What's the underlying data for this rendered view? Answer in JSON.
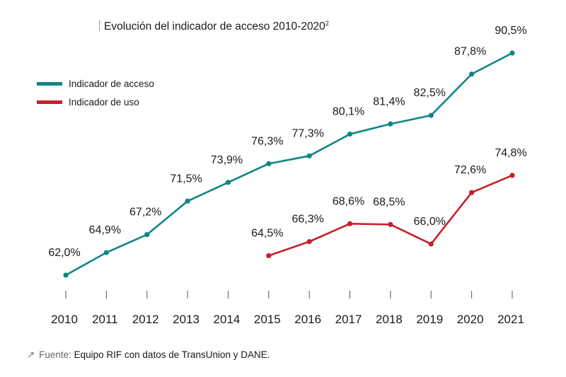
{
  "chart_data": {
    "type": "line",
    "title": "Evolución del indicador de acceso 2010-2020",
    "title_superscript": "2",
    "xlabel": "",
    "ylabel": "",
    "x": [
      "2010",
      "2011",
      "2012",
      "2013",
      "2014",
      "2015",
      "2016",
      "2017",
      "2018",
      "2019",
      "2020",
      "2021"
    ],
    "series": [
      {
        "name": "Indicador de acceso",
        "color": "#0f8585",
        "values": [
          62.0,
          64.9,
          67.2,
          71.5,
          73.9,
          76.3,
          77.3,
          80.1,
          81.4,
          82.5,
          87.8,
          90.5
        ],
        "labels": [
          "62,0%",
          "64,9%",
          "67,2%",
          "71,5%",
          "73,9%",
          "76,3%",
          "77,3%",
          "80,1%",
          "81,4%",
          "82,5%",
          "87,8%",
          "90,5%"
        ]
      },
      {
        "name": "Indicador de uso",
        "color": "#c71f2a",
        "values": [
          null,
          null,
          null,
          null,
          null,
          64.5,
          66.3,
          68.6,
          68.5,
          66.0,
          72.6,
          74.8
        ],
        "labels": [
          null,
          null,
          null,
          null,
          null,
          "64,5%",
          "66,3%",
          "68,6%",
          "68,5%",
          "66,0%",
          "72,6%",
          "74,8%"
        ]
      }
    ],
    "ylim": [
      62.0,
      90.5
    ],
    "grid": false,
    "legend_position": "top-left"
  },
  "source": {
    "icon": "arrow-up-right-icon",
    "label": "Fuente:",
    "text": "Equipo RIF con datos de TransUnion y DANE."
  }
}
